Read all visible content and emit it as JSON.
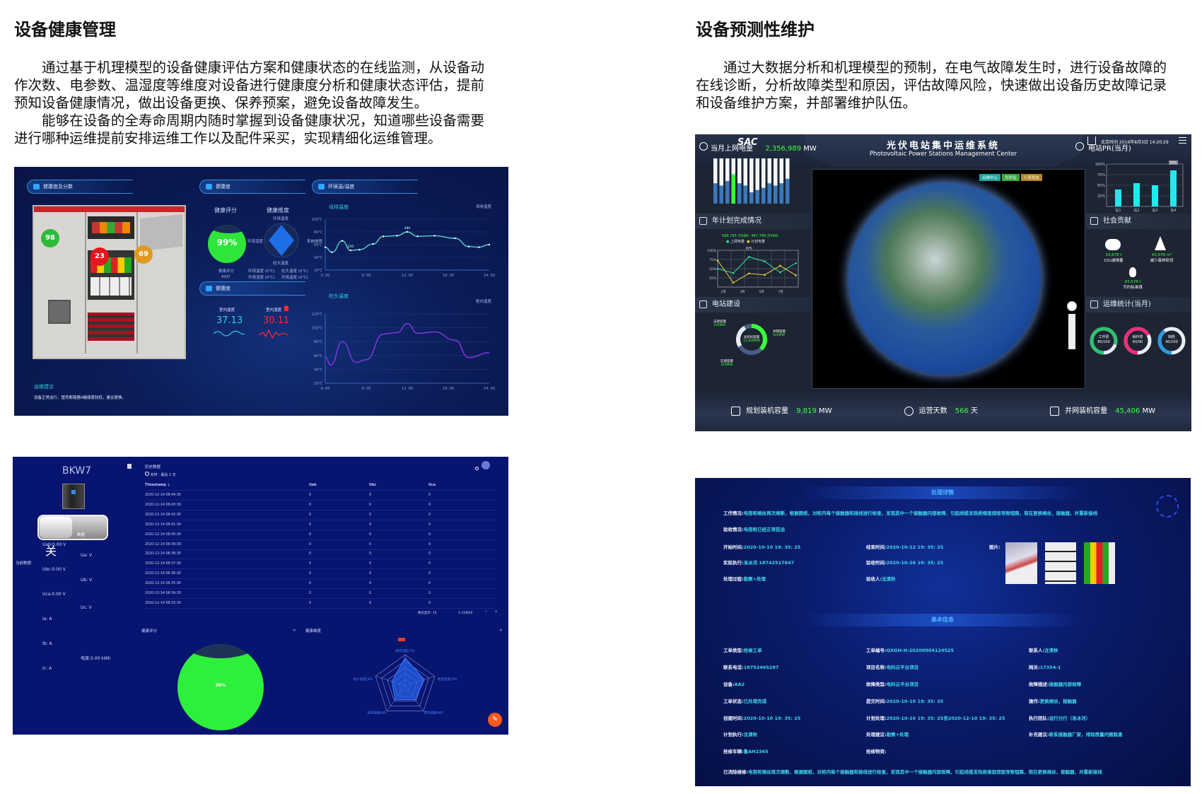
{
  "left_section": {
    "title": "设备健康管理",
    "paragraphs": [
      "通过基于机理模型的设备健康评估方案和健康状态的在线监测，从设备动作次数、电参数、温湿度等维度对设备进行健康度分析和健康状态评估，提前预知设备健康情况，做出设备更换、保养预案，避免设备故障发生。",
      "能够在设备的全寿命周期内随时掌握到设备健康状况，知道哪些设备需要进行哪种运维提前安排运维工作以及配件采买，实现精细化运维管理。"
    ]
  },
  "right_section": {
    "title": "设备预测性维护",
    "paragraphs": [
      "通过大数据分析和机理模型的预制，在电气故障发生时，进行设备故障的在线诊断，分析故障类型和原因，评估故障风险，快速做出设备历史故障记录和设备维护方案，并部署维护队伍。"
    ]
  },
  "health_dashboard": {
    "headers": [
      "健康度及分数",
      "健康度",
      "环境温/温度",
      "健康度"
    ],
    "badges": [
      {
        "value": "98",
        "color": "#2dbb3a"
      },
      {
        "value": "23",
        "color": "#e8141e"
      },
      {
        "value": "69",
        "color": "#e09a22"
      }
    ],
    "score_title": "健康评分",
    "dimension_title": "健康维度",
    "score_value": "99%",
    "score_label": "健康评分",
    "score_points": "99分",
    "radar_labels": [
      "环境温度",
      "环境湿度",
      "系统故障",
      "柱头温度"
    ],
    "dimension_readings": [
      "环境温度 (0℃)",
      "柱头温度 (0℃)",
      "环境湿度 (0℃)",
      "环境温度 (0℃)"
    ],
    "indoor_temp_label": "室内温度",
    "indoor_temp_value": "37.13",
    "indoor_humidity_label": "室内湿度",
    "indoor_humidity_value": "30.11",
    "advice_title": "运维建议",
    "advice_text": "设备正常运行，塑壳断路器4健康度较低，建议更换。",
    "colors": {
      "cyan": "#2fd1e0",
      "red": "#ff2a2a",
      "purple": "#8a2be2"
    },
    "charts": [
      {
        "type": "line",
        "title": "母排温度",
        "legend": "母排温度",
        "y_ticks": [
          "100℃",
          "80℃",
          "60℃",
          "40℃",
          "20℃"
        ],
        "ylim": [
          20,
          100
        ],
        "x_ticks": [
          "0: 00",
          "6: 00",
          "12: 00",
          "18: 00",
          "24: 00"
        ],
        "x": [
          0,
          1,
          2.5,
          3.7,
          5,
          7,
          8.5,
          10.5,
          12,
          13.5,
          16,
          19,
          21,
          22.5,
          24
        ],
        "y": [
          56,
          48,
          66,
          51,
          52,
          61,
          73,
          74,
          80,
          73,
          74,
          70,
          57,
          56,
          60
        ],
        "annotations": [
          {
            "x": 3.7,
            "label": "220"
          },
          {
            "x": 12,
            "label": "480"
          }
        ],
        "color": "#4fd6d0"
      },
      {
        "type": "line",
        "title": "柱头温度",
        "legend": "柜内温度",
        "y_ticks": [
          "120℃",
          "100℃",
          "80℃",
          "60℃",
          "40℃",
          "20℃"
        ],
        "ylim": [
          20,
          120
        ],
        "x_ticks": [
          "0: 00",
          "6: 00",
          "12: 00",
          "18: 00",
          "24: 00"
        ],
        "x": [
          0,
          0.8,
          2.5,
          4.5,
          6,
          8.5,
          10.5,
          12,
          13.5,
          16,
          19,
          21,
          24
        ],
        "y": [
          58,
          46,
          80,
          50,
          54,
          91,
          93,
          106,
          92,
          94,
          82,
          57,
          64
        ],
        "color": "#8a34e6"
      }
    ]
  },
  "pv_dashboard": {
    "logo": "SAC",
    "title": "光伏电站集中运维系统",
    "subtitle": "Photovoltaic Power Stations Management Center",
    "datetime": "北京时间 2016年8月3日 14:20:29",
    "monthly_energy_label": "当月上网电量",
    "monthly_energy_value": "2,356,989",
    "monthly_energy_unit": "MW",
    "pr_label": "电站PR(当月)",
    "energy_bars": [
      0.45,
      0.4,
      0.5,
      0.65,
      0.45,
      0.4,
      0.25,
      0.3,
      0.35,
      0.45,
      0.4,
      0.45,
      0.55
    ],
    "energy_bar_highlight": 3,
    "pr_chart": {
      "type": "bar",
      "categories": [
        "站1",
        "站2",
        "站3",
        "站4"
      ],
      "values": [
        40,
        55,
        50,
        85
      ],
      "y_ticks": [
        "100%",
        "75%",
        "50%",
        "25%"
      ],
      "ylim": [
        0,
        100
      ],
      "highlight_label": "82%"
    },
    "annual_plan_label": "年计划完成情况",
    "annual_plan": {
      "type": "line",
      "series": [
        {
          "name": "上网电量",
          "total": "568,793 万kWh",
          "color": "#2ee0a0",
          "values": [
            50,
            38,
            82,
            70,
            40,
            65
          ]
        },
        {
          "name": "计划电量",
          "total": "467,799 万kWh",
          "color": "#f0d040",
          "values": [
            72,
            12,
            37,
            33,
            58,
            32
          ]
        }
      ],
      "y_ticks": [
        "100%",
        "75%",
        "50%",
        "25%"
      ],
      "x_ticks": [
        "1月",
        "3月",
        "5月",
        "7月"
      ],
      "highlight_label": "82%"
    },
    "construction_label": "电站建设",
    "construction": {
      "unbuilt_label": "未建容量",
      "unbuilt_value": "350MW",
      "grid_label": "并网容量",
      "grid_value": "540MW",
      "total_label": "总装机容量",
      "total_value": "12,400MW",
      "building_label": "在建容量",
      "building_value": "350MW"
    },
    "map_tags": [
      {
        "label": "运维中心",
        "color": "#1fa5a0"
      },
      {
        "label": "光伏站",
        "color": "#3aa83a"
      },
      {
        "label": "人员状态",
        "color": "#b8862a"
      }
    ],
    "social_label": "社会贡献",
    "social": [
      {
        "value": "33,678 t",
        "label": "CO₂减排量"
      },
      {
        "value": "43,678 m³",
        "label": "减少森林砍伐"
      },
      {
        "value": "93,578 t",
        "label": "节约标准煤"
      }
    ],
    "om_stats_label": "运维统计(当月)",
    "om_stats": [
      {
        "label": "工作票",
        "value": "80/100",
        "fraction": 0.8,
        "color": "#2ec070"
      },
      {
        "label": "操作票",
        "value": "60/90",
        "fraction": 0.67,
        "color": "#ff2a7a"
      },
      {
        "label": "缺陷",
        "value": "40/100",
        "fraction": 0.4,
        "color": "#2a9ae0"
      }
    ],
    "footer": [
      {
        "label": "规划装机容量",
        "value": "9,819",
        "unit": "MW"
      },
      {
        "label": "运营天数",
        "value": "566",
        "unit": "天"
      },
      {
        "label": "并网装机容量",
        "value": "45,406",
        "unit": "MW"
      }
    ]
  },
  "breaker_panel": {
    "device_name": "BKW7",
    "switch_tag": "数据",
    "switch_state": "关",
    "current_data_label": "当前数据",
    "readings_left": [
      "Uab:0.00 V",
      "Ubc:0.00 V",
      "Uca:0.00 V",
      "Ia: A",
      "Ib: A",
      "Ic: A"
    ],
    "readings_right": [
      "Ua: V",
      "Ub: V",
      "Uc: V",
      "电度:0.00 kWh"
    ],
    "history_title": "历史数据",
    "history_range": "实时 · 最后 1 天",
    "columns": [
      "Timestamp ↓",
      "Uab",
      "Ubc",
      "Uca"
    ],
    "rows": [
      [
        "2020-12-14 08:44:30",
        "0",
        "0",
        "0"
      ],
      [
        "2020-12-14 08:43:30",
        "0",
        "0",
        "0"
      ],
      [
        "2020-12-14 08:42:30",
        "0",
        "0",
        "0"
      ],
      [
        "2020-12-14 08:41:30",
        "0",
        "0",
        "0"
      ],
      [
        "2020-12-14 08:40:30",
        "0",
        "0",
        "0"
      ],
      [
        "2020-12-14 08:39:30",
        "0",
        "0",
        "0"
      ],
      [
        "2020-12-14 08:38:30",
        "0",
        "0",
        "0"
      ],
      [
        "2020-12-14 08:37:30",
        "0",
        "0",
        "0"
      ],
      [
        "2020-12-14 08:36:30",
        "0",
        "0",
        "0"
      ],
      [
        "2020-12-14 08:35:30",
        "0",
        "0",
        "0"
      ],
      [
        "2020-12-14 08:34:30",
        "0",
        "0",
        "0"
      ],
      [
        "2020-12-14 08:33:30",
        "0",
        "0",
        "0"
      ]
    ],
    "page_size_label": "每页显示: 15",
    "page_range": "1-15共35",
    "health_score_title": "健康评分",
    "health_score_value": "80%",
    "health_dimension_title": "健康维度",
    "radar_labels": [
      "柜内温度(75)",
      "柜内湿度(50)",
      "室内温度(40)",
      "母排温度(40)",
      "柱头温度(30)"
    ],
    "radar_values": [
      75,
      50,
      40,
      40,
      30
    ],
    "colors": {
      "background": "#071470",
      "score": "#2ef03a",
      "fab": "#ff5a1e"
    }
  },
  "maintenance_panel": {
    "detail_title": "处理详情",
    "work_status_label": "工作情况:",
    "work_status": "电容柜熔丝再次熔断，根据图纸，对柜内每个接触器和接线进行检查，发现其中一个接触器内部故障，引起线缆发热绝缘层烧毁导致短路，现在更换熔丝，接触器，并重新接线",
    "acceptance_label": "验收情况:",
    "acceptance": "电容柜已经正常投运",
    "detail_fields": [
      {
        "label": "开始时间:",
        "value": "2020-10-10 19: 35: 25"
      },
      {
        "label": "结束时间:",
        "value": "2020-10-12 19: 35: 25"
      },
      {
        "label": "实际执行:",
        "value": "洛冰河 18742517847"
      },
      {
        "label": "验收时间:",
        "value": "2020-10-26 19: 35: 25"
      },
      {
        "label": "处理过程:",
        "value": "勘察+处理"
      },
      {
        "label": "验收人:",
        "value": "沈清秋"
      }
    ],
    "pictures_label": "图片:",
    "basic_title": "基本信息",
    "basic_fields": [
      {
        "label": "工单类型:",
        "value": "抢修工单"
      },
      {
        "label": "工单编号:",
        "value": "QXGH-H-20200904124525"
      },
      {
        "label": "联系人:",
        "value": "沈清秋"
      },
      {
        "label": "联系电话:",
        "value": "18752465287"
      },
      {
        "label": "项目名称:",
        "value": "电科云平台项目"
      },
      {
        "label": "网关:",
        "value": "17354-1"
      },
      {
        "label": "设备:",
        "value": "AA2"
      },
      {
        "label": "故障类型:",
        "value": "电科云平台项目"
      },
      {
        "label": "故障描述:",
        "value": "接触器内部故障"
      },
      {
        "label": "工单状态:",
        "value": "已处理完成"
      },
      {
        "label": "提交时间:",
        "value": "2020-10-10 19: 35: 25"
      },
      {
        "label": "操作:",
        "value": "更换熔丝，接触器"
      },
      {
        "label": "创建时间:",
        "value": "2020-10-10 19: 35: 25"
      },
      {
        "label": "计划处理:",
        "value": "2020-10-10 19: 35: 25至2020-12-10 19: 35: 25"
      },
      {
        "label": "执行团队:",
        "value": "运行分行（洛冰河）"
      },
      {
        "label": "计划执行:",
        "value": "沈清秋"
      },
      {
        "label": "处理建议:",
        "value": "勘察+处理"
      },
      {
        "label": "补充建议:",
        "value": "联系接触器厂家，排除质量问题隐患"
      },
      {
        "label": "抢修车辆:",
        "value": "鲁AH2365"
      },
      {
        "label": "抢修物资:",
        "value": ""
      }
    ],
    "resolved_label": "已消除维修:",
    "resolved": "电容柜熔丝再次熔断，根据图纸，对柜内每个接触器和接线进行检查，发现其中一个接触器内部故障，引起线缆发热绝缘层烧毁导致短路，现在更换熔丝，接触器，并重新接线",
    "colors": {
      "label": "#f0f4ff",
      "value": "#3fd9ea"
    }
  }
}
